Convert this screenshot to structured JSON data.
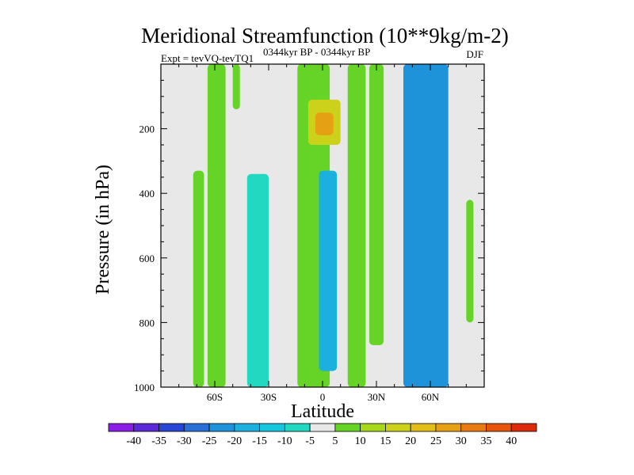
{
  "chart_data": {
    "type": "heatmap",
    "title": "Meridional Streamfunction (10**9kg/m-2)",
    "experiment_label": "Expt = tevVQ-tevTQ1",
    "period_label": "0344kyr BP - 0344kyr BP",
    "season_label": "DJF",
    "xlabel": "Latitude",
    "ylabel": "Pressure (in hPa)",
    "xlim": [
      -90,
      90
    ],
    "ylim": [
      1000,
      0
    ],
    "x_ticks": [
      {
        "value": -60,
        "label": "60S"
      },
      {
        "value": -30,
        "label": "30S"
      },
      {
        "value": 0,
        "label": "0"
      },
      {
        "value": 30,
        "label": "30N"
      },
      {
        "value": 60,
        "label": "60N"
      }
    ],
    "y_ticks": [
      {
        "value": 200,
        "label": "200"
      },
      {
        "value": 400,
        "label": "400"
      },
      {
        "value": 600,
        "label": "600"
      },
      {
        "value": 800,
        "label": "800"
      },
      {
        "value": 1000,
        "label": "1000"
      }
    ],
    "background_color": "#e8e8e8",
    "colorbar": {
      "labels": [
        "-40",
        "-35",
        "-30",
        "-25",
        "-20",
        "-15",
        "-10",
        "-5",
        "5",
        "10",
        "15",
        "20",
        "25",
        "30",
        "35",
        "40"
      ],
      "colors": [
        "#8a1ee6",
        "#5a2ad8",
        "#2845d6",
        "#2a6fd6",
        "#1f93d9",
        "#1bb0dd",
        "#14c7dc",
        "#23d8c0",
        "#e8e8e8",
        "#66d426",
        "#a8d81c",
        "#ccd21a",
        "#e2bf16",
        "#e6a014",
        "#e87c12",
        "#e6540e",
        "#dd2a0a"
      ]
    },
    "regions": [
      {
        "name": "sh-high-lat-band",
        "level": "5 to 10",
        "color": "#66d426",
        "lat": [
          -72,
          -66
        ],
        "pressure": [
          330,
          1000
        ]
      },
      {
        "name": "sh-midlat-band",
        "level": "5 to 10",
        "color": "#66d426",
        "lat": [
          -64,
          -54
        ],
        "pressure": [
          0,
          1000
        ]
      },
      {
        "name": "sh-upper-blob",
        "level": "5 to 10",
        "color": "#66d426",
        "lat": [
          -50,
          -46
        ],
        "pressure": [
          0,
          140
        ]
      },
      {
        "name": "sh-subtropical-cell",
        "level": "-10 to -5",
        "color": "#23d8c0",
        "lat": [
          -42,
          -30
        ],
        "pressure": [
          340,
          1000
        ]
      },
      {
        "name": "tropical-ascending-branch",
        "level": "5 to 10",
        "color": "#66d426",
        "lat": [
          -14,
          4
        ],
        "pressure": [
          0,
          1000
        ]
      },
      {
        "name": "upper-tropical-core",
        "level": "10 to 25",
        "color": "#ccd21a",
        "lat": [
          -8,
          10
        ],
        "pressure": [
          110,
          250
        ]
      },
      {
        "name": "upper-tropical-peak",
        "level": "25 to 30",
        "color": "#e6a014",
        "lat": [
          -4,
          6
        ],
        "pressure": [
          150,
          220
        ]
      },
      {
        "name": "nh-tropical-negative",
        "level": "-15 to -5",
        "color": "#1bb0dd",
        "lat": [
          -2,
          8
        ],
        "pressure": [
          330,
          950
        ]
      },
      {
        "name": "nh-subtropical-band",
        "level": "5 to 10",
        "color": "#66d426",
        "lat": [
          14,
          24
        ],
        "pressure": [
          0,
          1000
        ]
      },
      {
        "name": "nh-midlat-band",
        "level": "5 to 10",
        "color": "#66d426",
        "lat": [
          26,
          34
        ],
        "pressure": [
          0,
          870
        ]
      },
      {
        "name": "nh-polar-cell",
        "level": "-20 to -5",
        "color": "#1f93d9",
        "lat": [
          45,
          70
        ],
        "pressure": [
          0,
          1000
        ]
      },
      {
        "name": "nh-high-lat-band",
        "level": "5 to 10",
        "color": "#66d426",
        "lat": [
          80,
          84
        ],
        "pressure": [
          420,
          800
        ]
      }
    ]
  }
}
